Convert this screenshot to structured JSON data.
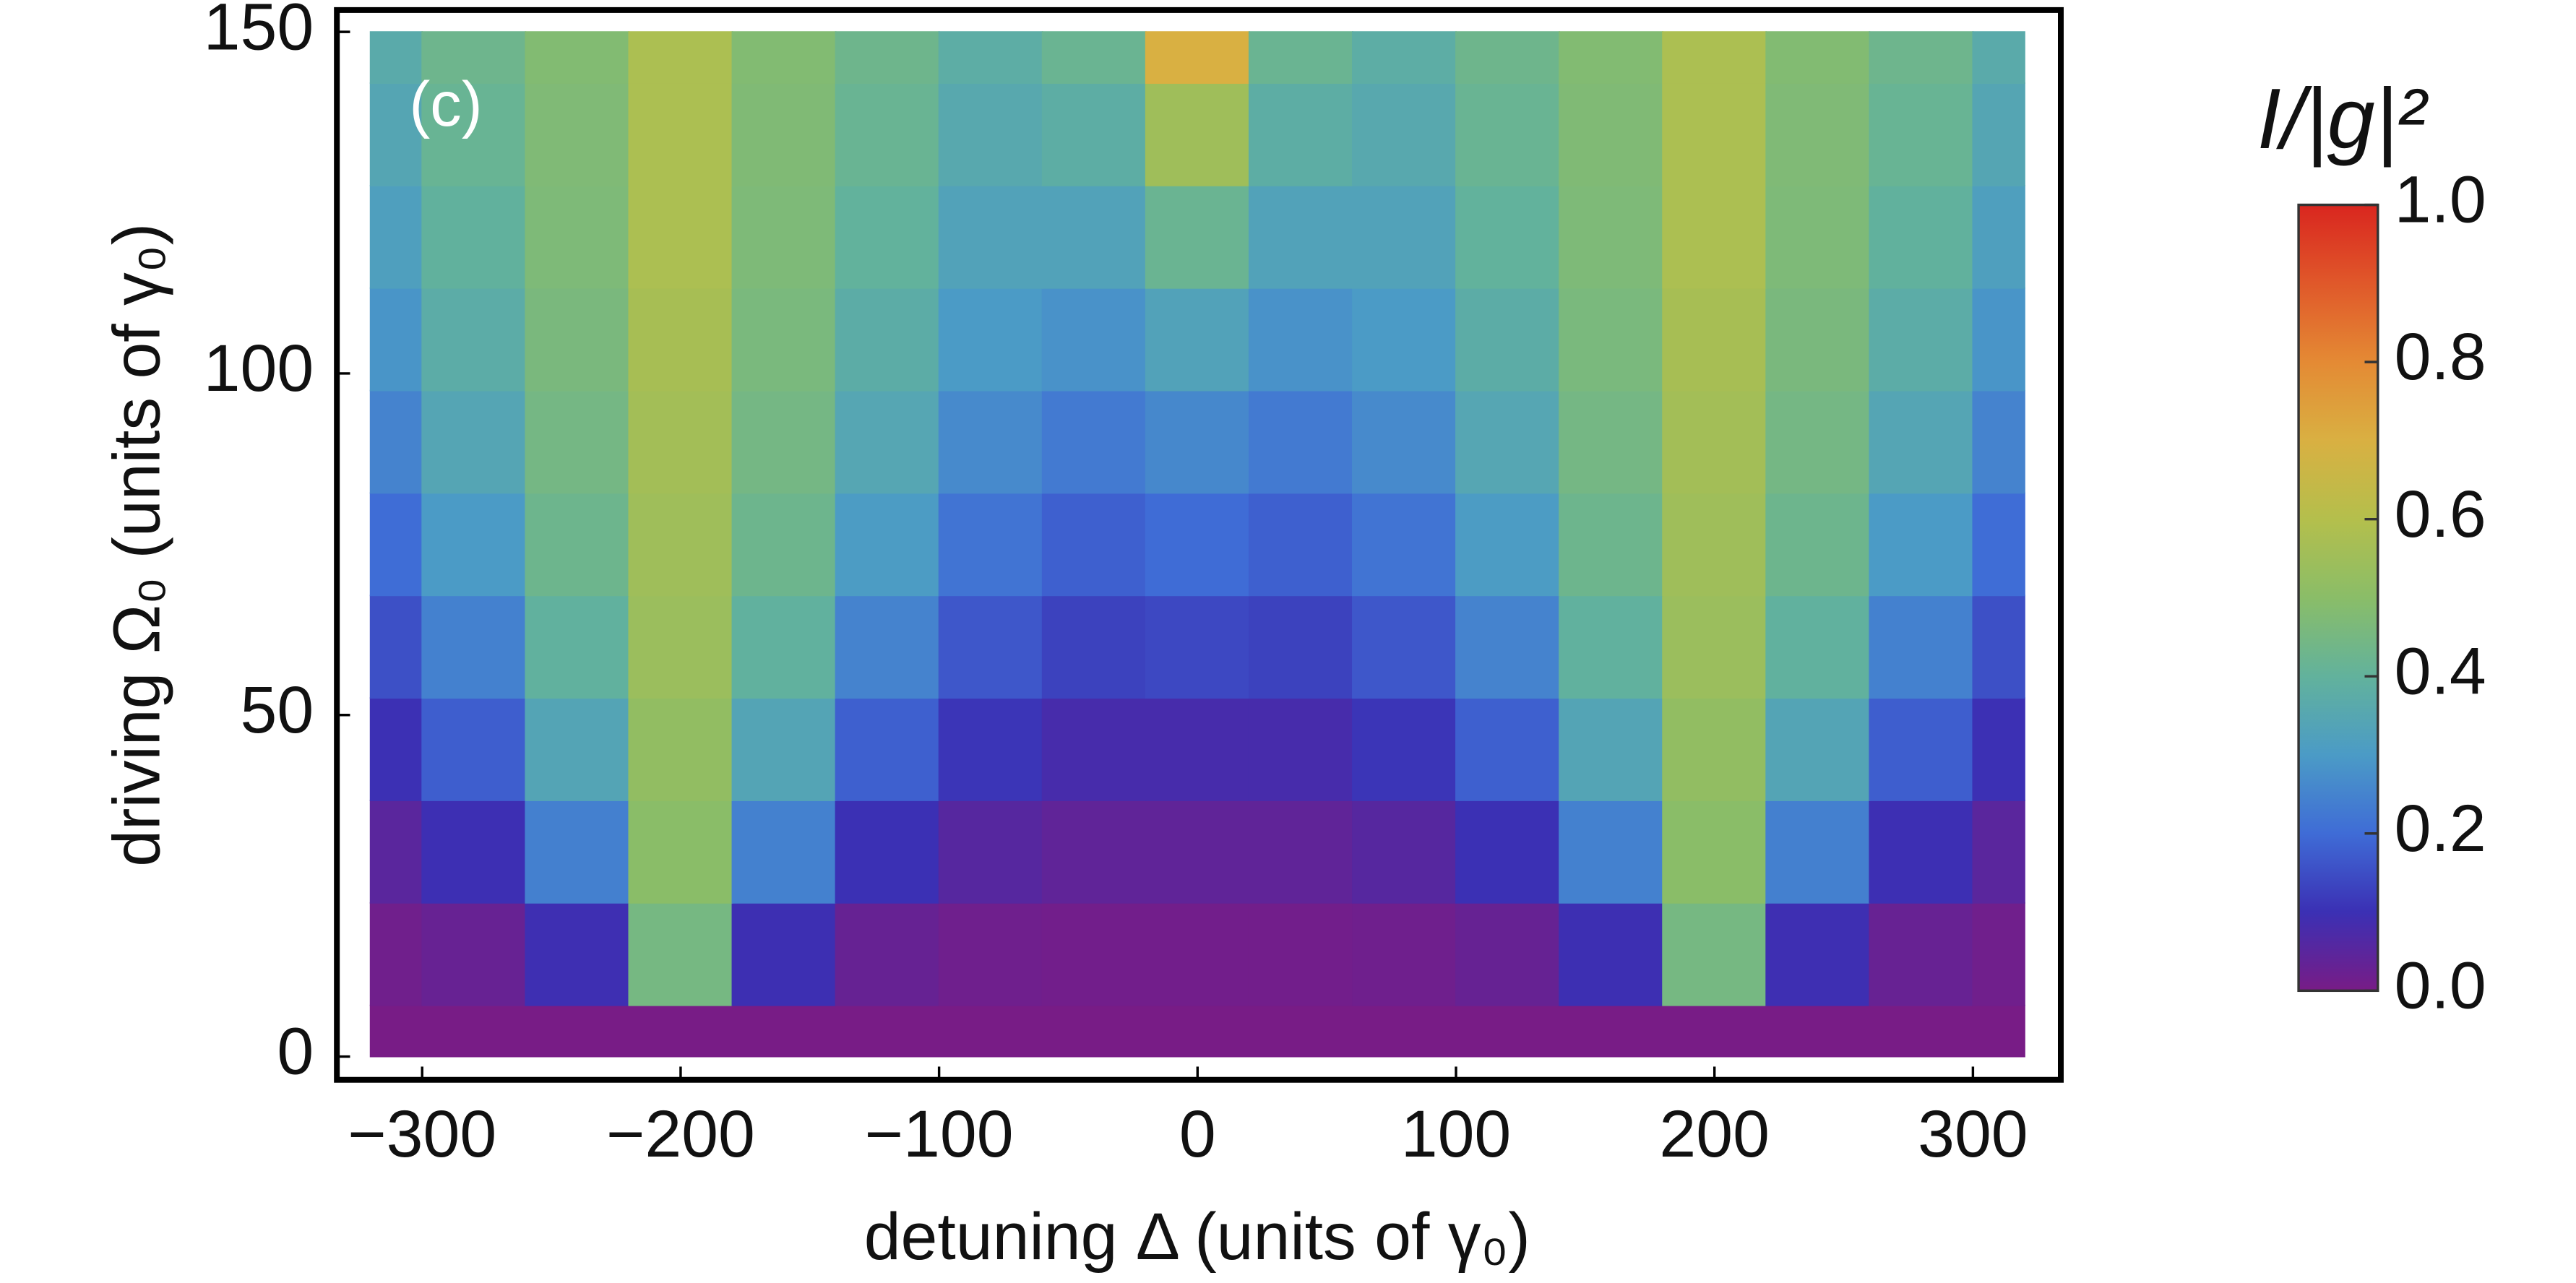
{
  "chart_data": {
    "type": "contour",
    "xlabel": "detuning Δ (units of γ₀)",
    "ylabel": "driving Ω₀ (units of γ₀)",
    "annotation": "(c)",
    "x": [
      -320,
      -280,
      -240,
      -200,
      -160,
      -120,
      -80,
      -40,
      0,
      40,
      80,
      120,
      160,
      200,
      240,
      280,
      320
    ],
    "y": [
      0,
      15,
      30,
      45,
      60,
      75,
      90,
      105,
      120,
      135,
      150
    ],
    "z": [
      [
        0,
        0,
        0,
        0,
        0,
        0,
        0,
        0,
        0,
        0,
        0,
        0,
        0,
        0,
        0,
        0,
        0
      ],
      [
        0.013,
        0.028,
        0.095,
        0.45,
        0.096,
        0.029,
        0.015,
        0.01,
        0.01,
        0.01,
        0.015,
        0.029,
        0.096,
        0.45,
        0.095,
        0.028,
        0.013
      ],
      [
        0.049,
        0.097,
        0.243,
        0.5,
        0.244,
        0.1,
        0.055,
        0.04,
        0.04,
        0.04,
        0.055,
        0.1,
        0.244,
        0.5,
        0.243,
        0.097,
        0.049
      ],
      [
        0.099,
        0.176,
        0.34,
        0.52,
        0.34,
        0.18,
        0.109,
        0.08,
        0.08,
        0.08,
        0.109,
        0.18,
        0.34,
        0.52,
        0.34,
        0.176,
        0.099
      ],
      [
        0.153,
        0.245,
        0.395,
        0.54,
        0.396,
        0.249,
        0.165,
        0.13,
        0.14,
        0.13,
        0.165,
        0.249,
        0.396,
        0.54,
        0.395,
        0.245,
        0.153
      ],
      [
        0.203,
        0.3,
        0.428,
        0.55,
        0.428,
        0.304,
        0.218,
        0.18,
        0.2,
        0.18,
        0.218,
        0.304,
        0.428,
        0.55,
        0.428,
        0.3,
        0.203
      ],
      [
        0.248,
        0.342,
        0.447,
        0.56,
        0.447,
        0.346,
        0.263,
        0.23,
        0.26,
        0.23,
        0.263,
        0.346,
        0.447,
        0.56,
        0.447,
        0.342,
        0.248
      ],
      [
        0.287,
        0.373,
        0.459,
        0.57,
        0.46,
        0.376,
        0.301,
        0.28,
        0.33,
        0.28,
        0.301,
        0.376,
        0.46,
        0.57,
        0.459,
        0.373,
        0.287
      ],
      [
        0.319,
        0.397,
        0.469,
        0.58,
        0.469,
        0.4,
        0.332,
        0.33,
        0.42,
        0.33,
        0.332,
        0.4,
        0.469,
        0.58,
        0.469,
        0.397,
        0.319
      ],
      [
        0.345,
        0.415,
        0.474,
        0.58,
        0.475,
        0.417,
        0.357,
        0.38,
        0.55,
        0.38,
        0.357,
        0.417,
        0.475,
        0.58,
        0.474,
        0.415,
        0.345
      ],
      [
        0.366,
        0.429,
        0.48,
        0.58,
        0.48,
        0.431,
        0.378,
        0.42,
        0.7,
        0.42,
        0.378,
        0.431,
        0.48,
        0.58,
        0.48,
        0.429,
        0.366
      ]
    ],
    "xlim": [
      -333,
      334
    ],
    "ylim": [
      -3.4,
      153.2
    ],
    "xticks": [
      {
        "value": -300,
        "label": "−300"
      },
      {
        "value": -200,
        "label": "−200"
      },
      {
        "value": -100,
        "label": "−100"
      },
      0,
      100,
      200,
      300
    ],
    "yticks": [
      0,
      50,
      100,
      150
    ],
    "colormap": [
      "#781c86",
      "#3b30b4",
      "#3f6cd6",
      "#4b9bc6",
      "#62b29c",
      "#8abd68",
      "#b4bf4c",
      "#d9b042",
      "#e48a34",
      "#e0582a",
      "#d9261f"
    ],
    "colorbar": {
      "title": "I/|g|²",
      "lim": [
        0,
        1
      ],
      "ticks": [
        {
          "value": 0,
          "label": "0.0"
        },
        0.2,
        0.4,
        0.6,
        0.8,
        {
          "value": 1,
          "label": "1.0"
        }
      ]
    }
  }
}
